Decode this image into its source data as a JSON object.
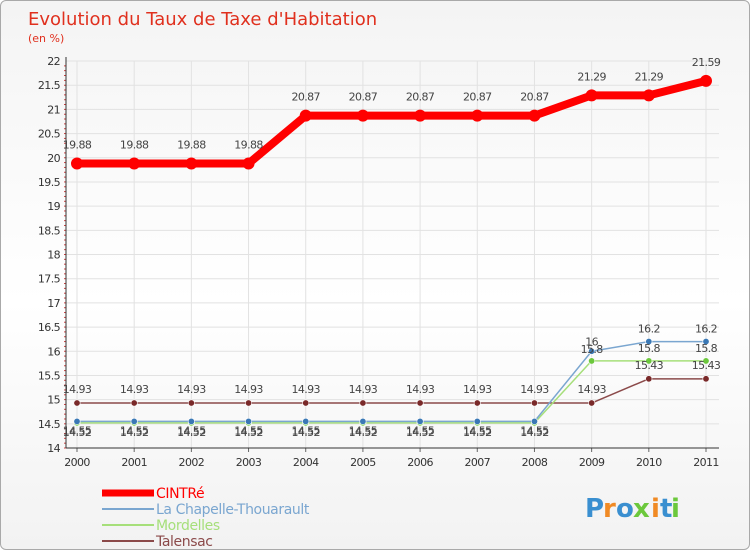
{
  "chart_data": {
    "type": "line",
    "title": "Evolution du Taux de Taxe d'Habitation",
    "ylabel": "(en %)",
    "xlabel": "",
    "categories": [
      "2000",
      "2001",
      "2002",
      "2003",
      "2004",
      "2005",
      "2006",
      "2007",
      "2008",
      "2009",
      "2010",
      "2011"
    ],
    "ylim": [
      14,
      22
    ],
    "yticks": [
      14,
      14.5,
      15,
      15.5,
      16,
      16.5,
      17,
      17.5,
      18,
      18.5,
      19,
      19.5,
      20,
      20.5,
      21,
      21.5,
      22
    ],
    "ytick_labels": [
      "14",
      "14.5",
      "15",
      "15.5",
      "16",
      "16.5",
      "17",
      "17.5",
      "18",
      "18.5",
      "19",
      "19.5",
      "20",
      "20.5",
      "21",
      "21.5",
      "22"
    ],
    "series": [
      {
        "name": "CINTRé",
        "color": "#ff0000",
        "marker": "#ff0000",
        "values": [
          19.88,
          19.88,
          19.88,
          19.88,
          20.87,
          20.87,
          20.87,
          20.87,
          20.87,
          21.29,
          21.29,
          21.59
        ],
        "labels": [
          "19.88",
          "19.88",
          "19.88",
          "19.88",
          "20.87",
          "20.87",
          "20.87",
          "20.87",
          "20.87",
          "21.29",
          "21.29",
          "21.59"
        ]
      },
      {
        "name": "La Chapelle-Thouarault",
        "color": "#7aa6d0",
        "marker": "#3a78b5",
        "values": [
          14.55,
          14.55,
          14.55,
          14.55,
          14.55,
          14.55,
          14.55,
          14.55,
          14.55,
          16,
          16.2,
          16.2
        ],
        "labels": [
          "14.55",
          "14.55",
          "14.55",
          "14.55",
          "14.55",
          "14.55",
          "14.55",
          "14.55",
          "14.55",
          "16",
          "16.2",
          "16.2"
        ]
      },
      {
        "name": "Mordelles",
        "color": "#a6df7a",
        "marker": "#6cc83c",
        "values": [
          14.52,
          14.52,
          14.52,
          14.52,
          14.52,
          14.52,
          14.52,
          14.52,
          14.52,
          15.8,
          15.8,
          15.8
        ],
        "labels": [
          "14.52",
          "14.52",
          "14.52",
          "14.52",
          "14.52",
          "14.52",
          "14.52",
          "14.52",
          "14.52",
          "15.8",
          "15.8",
          "15.8"
        ]
      },
      {
        "name": "Talensac",
        "color": "#8b4a4a",
        "marker": "#7a2a2a",
        "values": [
          14.93,
          14.93,
          14.93,
          14.93,
          14.93,
          14.93,
          14.93,
          14.93,
          14.93,
          14.93,
          15.43,
          15.43
        ],
        "labels": [
          "14.93",
          "14.93",
          "14.93",
          "14.93",
          "14.93",
          "14.93",
          "14.93",
          "14.93",
          "14.93",
          "14.93",
          "15.43",
          "15.43"
        ]
      }
    ]
  },
  "legend": {
    "items": [
      {
        "label": "CINTRé",
        "color": "#ff0000"
      },
      {
        "label": "La Chapelle-Thouarault",
        "color": "#7aa6d0"
      },
      {
        "label": "Mordelles",
        "color": "#a6df7a"
      },
      {
        "label": "Talensac",
        "color": "#8b4a4a"
      }
    ]
  },
  "logo": {
    "letters": [
      {
        "ch": "P",
        "color": "#3a8fd0"
      },
      {
        "ch": "r",
        "color": "#f08a24"
      },
      {
        "ch": "o",
        "color": "#3a8fd0"
      },
      {
        "ch": "x",
        "color": "#6cc83c"
      },
      {
        "ch": "i",
        "color": "#f08a24"
      },
      {
        "ch": "t",
        "color": "#3a8fd0"
      },
      {
        "ch": "i",
        "color": "#6cc83c"
      }
    ]
  }
}
